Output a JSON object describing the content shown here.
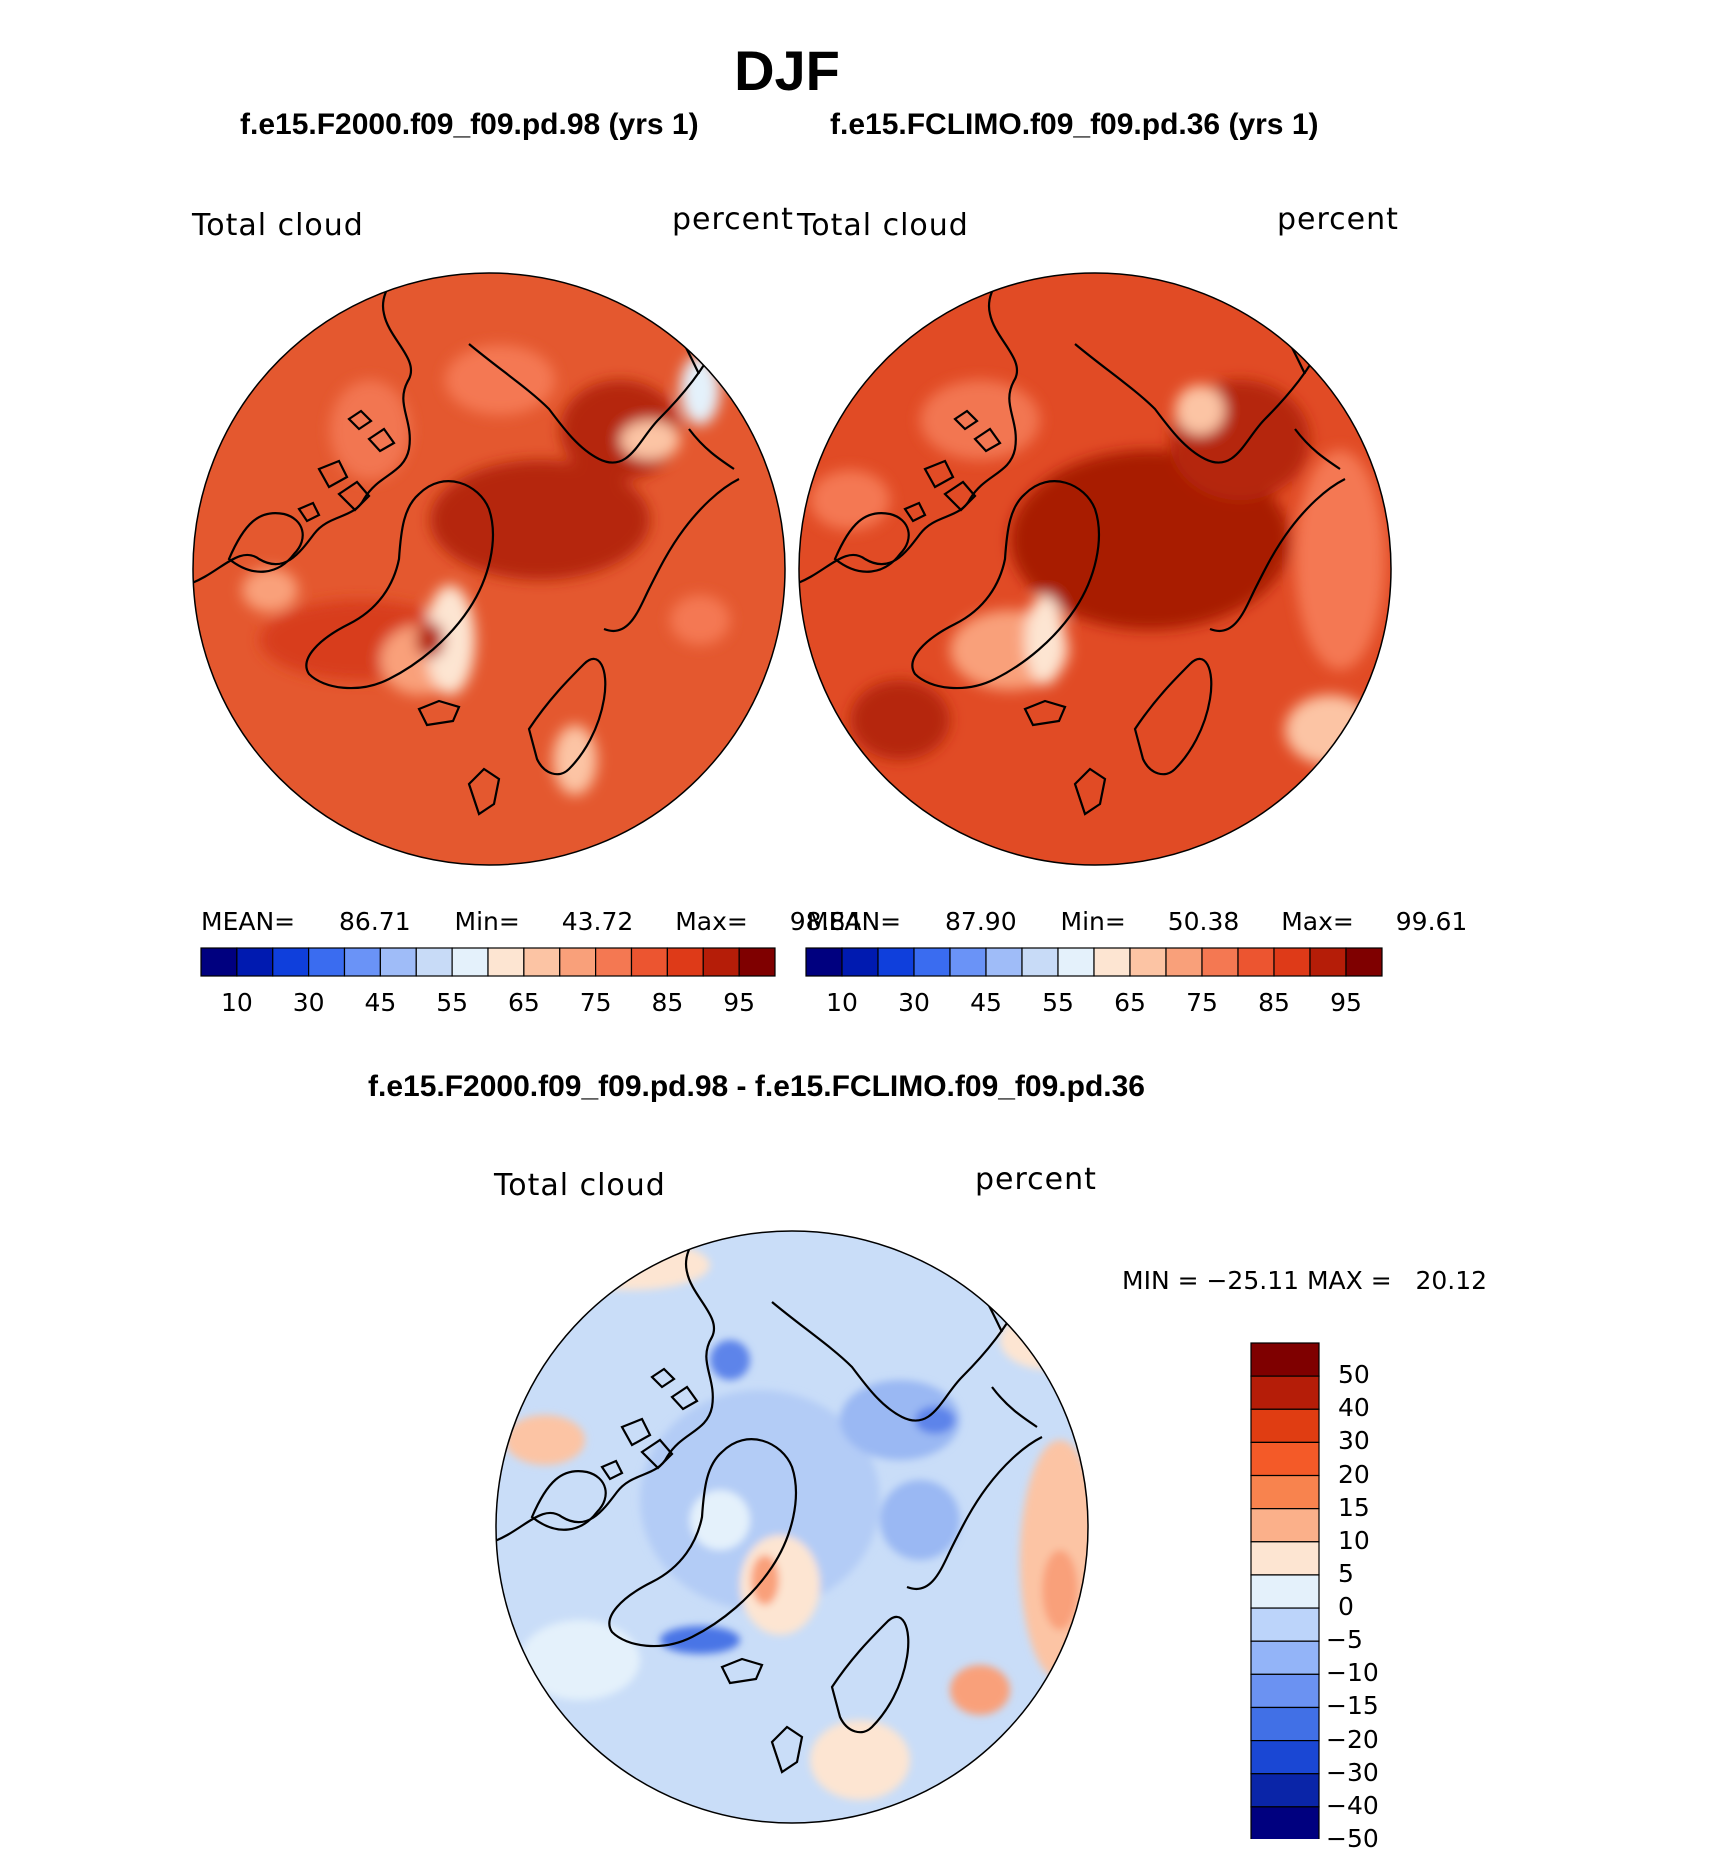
{
  "title": "DJF",
  "panels": [
    {
      "case_title": "f.e15.F2000.f09_f09.pd.98 (yrs 1)",
      "variable": "Total cloud",
      "units": "percent",
      "stats": {
        "mean_label": "MEAN=",
        "mean": "86.71",
        "min_label": "Min=",
        "min": "43.72",
        "max_label": "Max=",
        "max": "98.84"
      },
      "colorbar_ticks": [
        "10",
        "30",
        "45",
        "55",
        "65",
        "75",
        "85",
        "95"
      ]
    },
    {
      "case_title": "f.e15.FCLIMO.f09_f09.pd.36 (yrs 1)",
      "variable": "Total cloud",
      "units": "percent",
      "stats": {
        "mean_label": "MEAN=",
        "mean": "87.90",
        "min_label": "Min=",
        "min": "50.38",
        "max_label": "Max=",
        "max": "99.61"
      },
      "colorbar_ticks": [
        "10",
        "30",
        "45",
        "55",
        "65",
        "75",
        "85",
        "95"
      ]
    }
  ],
  "difference": {
    "title": "f.e15.F2000.f09_f09.pd.98 - f.e15.FCLIMO.f09_f09.pd.36",
    "variable": "Total cloud",
    "units": "percent",
    "minmax": "MIN = −25.11 MAX =   20.12",
    "colorbar_ticks": [
      "50",
      "40",
      "30",
      "20",
      "15",
      "10",
      "5",
      "0",
      "−5",
      "−10",
      "−15",
      "−20",
      "−30",
      "−40",
      "−50"
    ]
  },
  "colors": {
    "abs_scale": [
      "#00007f",
      "#001ab0",
      "#0f3fdc",
      "#3a6cf0",
      "#6a93f7",
      "#9fbcf8",
      "#c8dbf7",
      "#e4f1fb",
      "#fde5d2",
      "#fcc4a4",
      "#f9a07a",
      "#f47852",
      "#ec5530",
      "#de3a18",
      "#b51d08",
      "#7f0000"
    ],
    "diff_scale": [
      "#7f0000",
      "#b51d08",
      "#e03d12",
      "#f45a28",
      "#f8834e",
      "#fbb08a",
      "#fde5d2",
      "#e4f1fb",
      "#bcd4fa",
      "#93b4f8",
      "#6b92f2",
      "#4170e6",
      "#1a47d4",
      "#0a25a8",
      "#00007f"
    ],
    "land_outline": "#000000"
  }
}
